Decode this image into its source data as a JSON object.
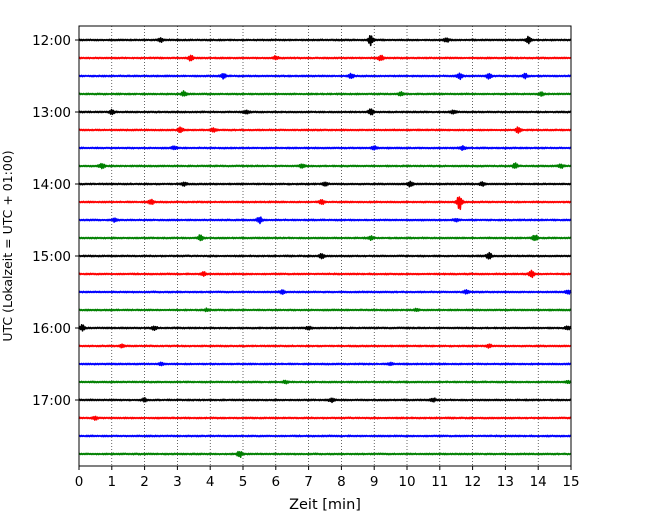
{
  "chart_data": {
    "type": "line",
    "title": "",
    "xlabel": "Zeit  [min]",
    "ylabel": "UTC (Lokalzeit = UTC + 01:00)",
    "xlim": [
      0,
      15
    ],
    "x_ticks": [
      0,
      1,
      2,
      3,
      4,
      5,
      6,
      7,
      8,
      9,
      10,
      11,
      12,
      13,
      14,
      15
    ],
    "x_tick_labels": [
      "0",
      "1",
      "2",
      "3",
      "4",
      "5",
      "6",
      "7",
      "8",
      "9",
      "10",
      "11",
      "12",
      "13",
      "14",
      "15"
    ],
    "y_ticks": [
      "12:00",
      "13:00",
      "14:00",
      "15:00",
      "16:00",
      "17:00"
    ],
    "grid": "vertical dotted at each minute",
    "colors": [
      "#000000",
      "#ff0000",
      "#0000ff",
      "#008000"
    ],
    "traces": [
      {
        "start": "12:00",
        "color": "#000000",
        "events": [
          {
            "t": 2.5,
            "amp": 0.35
          },
          {
            "t": 8.9,
            "amp": 0.9
          },
          {
            "t": 11.2,
            "amp": 0.4
          },
          {
            "t": 13.7,
            "amp": 0.6
          }
        ]
      },
      {
        "start": "12:15",
        "color": "#ff0000",
        "events": [
          {
            "t": 3.4,
            "amp": 0.5
          },
          {
            "t": 6.0,
            "amp": 0.35
          },
          {
            "t": 9.2,
            "amp": 0.45
          }
        ]
      },
      {
        "start": "12:30",
        "color": "#0000ff",
        "events": [
          {
            "t": 4.4,
            "amp": 0.4
          },
          {
            "t": 8.3,
            "amp": 0.45
          },
          {
            "t": 11.6,
            "amp": 0.6
          },
          {
            "t": 12.5,
            "amp": 0.55
          },
          {
            "t": 13.6,
            "amp": 0.4
          }
        ]
      },
      {
        "start": "12:45",
        "color": "#008000",
        "events": [
          {
            "t": 3.2,
            "amp": 0.5
          },
          {
            "t": 9.8,
            "amp": 0.4
          },
          {
            "t": 14.1,
            "amp": 0.3
          }
        ]
      },
      {
        "start": "13:00",
        "color": "#000000",
        "events": [
          {
            "t": 1.0,
            "amp": 0.35
          },
          {
            "t": 5.1,
            "amp": 0.3
          },
          {
            "t": 8.9,
            "amp": 0.5
          },
          {
            "t": 11.4,
            "amp": 0.4
          }
        ]
      },
      {
        "start": "13:15",
        "color": "#ff0000",
        "events": [
          {
            "t": 3.1,
            "amp": 0.45
          },
          {
            "t": 4.1,
            "amp": 0.4
          },
          {
            "t": 13.4,
            "amp": 0.55
          }
        ]
      },
      {
        "start": "13:30",
        "color": "#0000ff",
        "events": [
          {
            "t": 2.9,
            "amp": 0.3
          },
          {
            "t": 9.0,
            "amp": 0.35
          },
          {
            "t": 11.7,
            "amp": 0.35
          }
        ]
      },
      {
        "start": "13:45",
        "color": "#008000",
        "events": [
          {
            "t": 0.7,
            "amp": 0.5
          },
          {
            "t": 6.8,
            "amp": 0.35
          },
          {
            "t": 13.3,
            "amp": 0.45
          },
          {
            "t": 14.7,
            "amp": 0.35
          }
        ]
      },
      {
        "start": "14:00",
        "color": "#000000",
        "events": [
          {
            "t": 3.2,
            "amp": 0.45
          },
          {
            "t": 7.5,
            "amp": 0.35
          },
          {
            "t": 10.1,
            "amp": 0.55
          },
          {
            "t": 12.3,
            "amp": 0.35
          }
        ]
      },
      {
        "start": "14:15",
        "color": "#ff0000",
        "events": [
          {
            "t": 2.2,
            "amp": 0.45
          },
          {
            "t": 7.4,
            "amp": 0.45
          },
          {
            "t": 11.6,
            "amp": 1.5
          }
        ]
      },
      {
        "start": "14:30",
        "color": "#0000ff",
        "events": [
          {
            "t": 1.1,
            "amp": 0.3
          },
          {
            "t": 5.5,
            "amp": 0.6
          },
          {
            "t": 11.5,
            "amp": 0.3
          }
        ]
      },
      {
        "start": "14:45",
        "color": "#008000",
        "events": [
          {
            "t": 3.7,
            "amp": 0.5
          },
          {
            "t": 8.9,
            "amp": 0.3
          },
          {
            "t": 13.9,
            "amp": 0.6
          }
        ]
      },
      {
        "start": "15:00",
        "color": "#000000",
        "events": [
          {
            "t": 7.4,
            "amp": 0.4
          },
          {
            "t": 12.5,
            "amp": 0.6
          }
        ]
      },
      {
        "start": "15:15",
        "color": "#ff0000",
        "events": [
          {
            "t": 3.8,
            "amp": 0.4
          },
          {
            "t": 13.8,
            "amp": 0.6
          }
        ]
      },
      {
        "start": "15:30",
        "color": "#0000ff",
        "events": [
          {
            "t": 6.2,
            "amp": 0.3
          },
          {
            "t": 11.8,
            "amp": 0.3
          },
          {
            "t": 14.9,
            "amp": 0.4
          }
        ]
      },
      {
        "start": "15:45",
        "color": "#008000",
        "events": [
          {
            "t": 3.9,
            "amp": 0.25
          },
          {
            "t": 10.3,
            "amp": 0.25
          }
        ]
      },
      {
        "start": "16:00",
        "color": "#000000",
        "events": [
          {
            "t": 0.1,
            "amp": 0.55
          },
          {
            "t": 2.3,
            "amp": 0.3
          },
          {
            "t": 7.0,
            "amp": 0.3
          },
          {
            "t": 14.9,
            "amp": 0.3
          }
        ]
      },
      {
        "start": "16:15",
        "color": "#ff0000",
        "events": [
          {
            "t": 1.3,
            "amp": 0.3
          },
          {
            "t": 12.5,
            "amp": 0.3
          }
        ]
      },
      {
        "start": "16:30",
        "color": "#0000ff",
        "events": [
          {
            "t": 2.5,
            "amp": 0.25
          },
          {
            "t": 9.5,
            "amp": 0.25
          }
        ]
      },
      {
        "start": "16:45",
        "color": "#008000",
        "events": [
          {
            "t": 6.3,
            "amp": 0.3
          },
          {
            "t": 14.9,
            "amp": 0.25
          }
        ]
      },
      {
        "start": "17:00",
        "color": "#000000",
        "events": [
          {
            "t": 2.0,
            "amp": 0.3
          },
          {
            "t": 7.7,
            "amp": 0.35
          },
          {
            "t": 10.8,
            "amp": 0.35
          }
        ]
      },
      {
        "start": "17:15",
        "color": "#ff0000",
        "events": [
          {
            "t": 0.5,
            "amp": 0.3
          }
        ]
      },
      {
        "start": "17:30",
        "color": "#0000ff",
        "events": []
      },
      {
        "start": "17:45",
        "color": "#008000",
        "events": [
          {
            "t": 4.9,
            "amp": 0.55
          }
        ]
      }
    ]
  }
}
